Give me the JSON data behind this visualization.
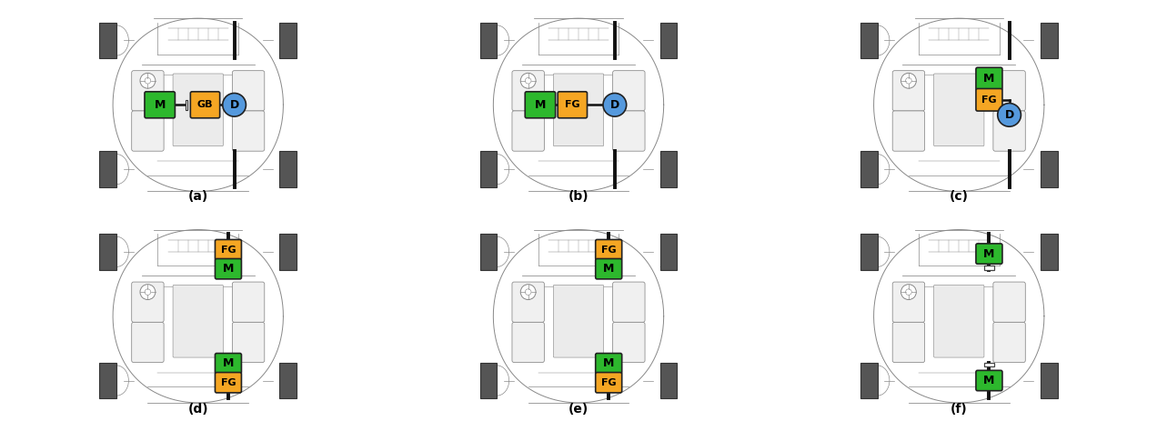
{
  "bg_color": "#ffffff",
  "green_color": "#2db82d",
  "orange_color": "#f5a623",
  "blue_color": "#5599dd",
  "wheel_color": "#555555",
  "axle_color": "#111111",
  "subfig_labels": [
    "(a)",
    "(b)",
    "(c)",
    "(d)",
    "(e)",
    "(f)"
  ]
}
